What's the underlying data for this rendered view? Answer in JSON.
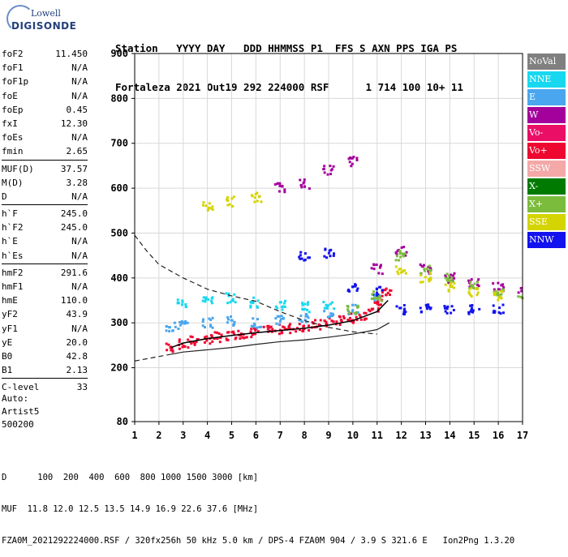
{
  "logo": {
    "line1": "Lowell",
    "line2": "DIGISONDE"
  },
  "header": {
    "labels": "Station   YYYY DAY   DDD HHMMSS P1  FFS S AXN PPS IGA PS",
    "values": "Fortaleza 2021 Out19 292 224000 RSF      1 714 100 10+ 11"
  },
  "params": [
    [
      {
        "label": "foF2",
        "value": "11.450"
      },
      {
        "label": "foF1",
        "value": "N/A"
      },
      {
        "label": "foF1p",
        "value": "N/A"
      },
      {
        "label": "foE",
        "value": "N/A"
      },
      {
        "label": "foEp",
        "value": "0.45"
      },
      {
        "label": "fxI",
        "value": "12.30"
      },
      {
        "label": "foEs",
        "value": "N/A"
      },
      {
        "label": "fmin",
        "value": "2.65"
      }
    ],
    [
      {
        "label": "MUF(D)",
        "value": "37.57"
      },
      {
        "label": "M(D)",
        "value": "3.28"
      },
      {
        "label": "D",
        "value": "N/A"
      }
    ],
    [
      {
        "label": "h`F",
        "value": "245.0"
      },
      {
        "label": "h`F2",
        "value": "245.0"
      },
      {
        "label": "h`E",
        "value": "N/A"
      },
      {
        "label": "h`Es",
        "value": "N/A"
      }
    ],
    [
      {
        "label": "hmF2",
        "value": "291.6"
      },
      {
        "label": "hmF1",
        "value": "N/A"
      },
      {
        "label": "hmE",
        "value": "110.0"
      },
      {
        "label": "yF2",
        "value": "43.9"
      },
      {
        "label": "yF1",
        "value": "N/A"
      },
      {
        "label": "yE",
        "value": "20.0"
      },
      {
        "label": "B0",
        "value": "42.8"
      },
      {
        "label": "B1",
        "value": "2.13"
      }
    ],
    [
      {
        "label": "C-level",
        "value": "33"
      }
    ]
  ],
  "auto": {
    "line1": "Auto:",
    "line2": "Artist5",
    "line3": "500200"
  },
  "legend": [
    {
      "label": "NoVal",
      "color": "#808080"
    },
    {
      "label": "NNE",
      "color": "#18d8f0"
    },
    {
      "label": "E",
      "color": "#4aa6ee"
    },
    {
      "label": "W",
      "color": "#a4009c"
    },
    {
      "label": "Vo-",
      "color": "#ea0e66"
    },
    {
      "label": "Vo+",
      "color": "#ee0830"
    },
    {
      "label": "SSW",
      "color": "#f4a8a8"
    },
    {
      "label": "X-",
      "color": "#007a00"
    },
    {
      "label": "X+",
      "color": "#7cbc3c"
    },
    {
      "label": "SSE",
      "color": "#d4d400"
    },
    {
      "label": "NNW",
      "color": "#1212ee"
    }
  ],
  "footer": {
    "line1": "D      100  200  400  600  800 1000 1500 3000 [km]",
    "line2": "MUF  11.8 12.0 12.5 13.5 14.9 16.9 22.6 37.6 [MHz]",
    "line3": "FZA0M_2021292224000.RSF / 320fx256h 50 kHz 5.0 km / DPS-4 FZA0M 904 / 3.9 S 321.6 E   Ion2Png 1.3.20"
  },
  "chart_data": {
    "type": "scatter",
    "title": "",
    "xlabel": "",
    "ylabel": "",
    "xlim": [
      1,
      17
    ],
    "ylim": [
      80,
      900
    ],
    "xticks": [
      "1",
      "2",
      "3",
      "4",
      "5",
      "6",
      "7",
      "8",
      "9",
      "10",
      "11",
      "12",
      "13",
      "14",
      "15",
      "16",
      "17"
    ],
    "yticks": [
      "80",
      "200",
      "300",
      "400",
      "500",
      "600",
      "700",
      "800",
      "900"
    ],
    "grid": true,
    "traces": [
      {
        "name": "h'F2 trace (Vo+)",
        "color": "#ee0830",
        "x": [
          2.5,
          3,
          3.5,
          4,
          4.5,
          5,
          5.5,
          6,
          6.5,
          7,
          7.5,
          8,
          8.5,
          9,
          9.5,
          10,
          10.5,
          11,
          11.2,
          11.4
        ],
        "y": [
          245,
          252,
          260,
          262,
          268,
          272,
          276,
          278,
          282,
          285,
          288,
          292,
          296,
          300,
          305,
          310,
          318,
          335,
          350,
          368
        ]
      },
      {
        "name": "NNE echoes",
        "color": "#18d8f0",
        "x": [
          3,
          4,
          5,
          6,
          7,
          8,
          9
        ],
        "y": [
          345,
          350,
          355,
          345,
          340,
          335,
          340
        ]
      },
      {
        "name": "E echoes",
        "color": "#4aa6ee",
        "x": [
          2.5,
          3,
          4,
          5,
          6,
          7,
          8,
          9,
          10,
          11
        ],
        "y": [
          290,
          295,
          300,
          305,
          300,
          305,
          310,
          320,
          330,
          360
        ]
      },
      {
        "name": "W echoes",
        "color": "#a4009c",
        "x": [
          7,
          8,
          9,
          10,
          11,
          12,
          13,
          14,
          15,
          16,
          17
        ],
        "y": [
          600,
          610,
          640,
          660,
          420,
          460,
          420,
          400,
          390,
          380,
          370
        ]
      },
      {
        "name": "NNW echoes",
        "color": "#1212ee",
        "x": [
          8,
          9,
          10,
          11,
          12,
          13,
          14,
          15,
          16
        ],
        "y": [
          450,
          455,
          380,
          370,
          330,
          330,
          330,
          330,
          330
        ]
      },
      {
        "name": "X+ echoes",
        "color": "#7cbc3c",
        "x": [
          10,
          11,
          12,
          13,
          14,
          15,
          16,
          17
        ],
        "y": [
          330,
          360,
          450,
          420,
          400,
          380,
          370,
          360
        ]
      },
      {
        "name": "SSE echoes",
        "color": "#d4d400",
        "x": [
          4,
          5,
          6,
          12,
          13,
          14,
          15,
          16
        ],
        "y": [
          560,
          570,
          580,
          420,
          400,
          380,
          370,
          360
        ]
      }
    ],
    "curves": {
      "upper_dashed": {
        "x": [
          1,
          1.5,
          2,
          3,
          4,
          5,
          6,
          7,
          8,
          9,
          10,
          11
        ],
        "y": [
          495,
          460,
          430,
          400,
          375,
          360,
          348,
          325,
          305,
          290,
          280,
          275
        ]
      },
      "lower_dashed": {
        "x": [
          1,
          1.5,
          2,
          2.5
        ],
        "y": [
          215,
          220,
          225,
          230
        ]
      },
      "lower_solid": {
        "x": [
          2.5,
          3,
          4,
          5,
          6,
          7,
          8,
          9,
          10,
          11,
          11.5
        ],
        "y": [
          230,
          235,
          240,
          245,
          252,
          258,
          262,
          268,
          275,
          285,
          300
        ]
      },
      "profile": {
        "x": [
          2.5,
          3,
          4,
          5,
          6,
          7,
          8,
          9,
          10,
          11,
          11.45
        ],
        "y": [
          245,
          255,
          265,
          272,
          278,
          283,
          288,
          295,
          305,
          325,
          350
        ]
      }
    }
  }
}
